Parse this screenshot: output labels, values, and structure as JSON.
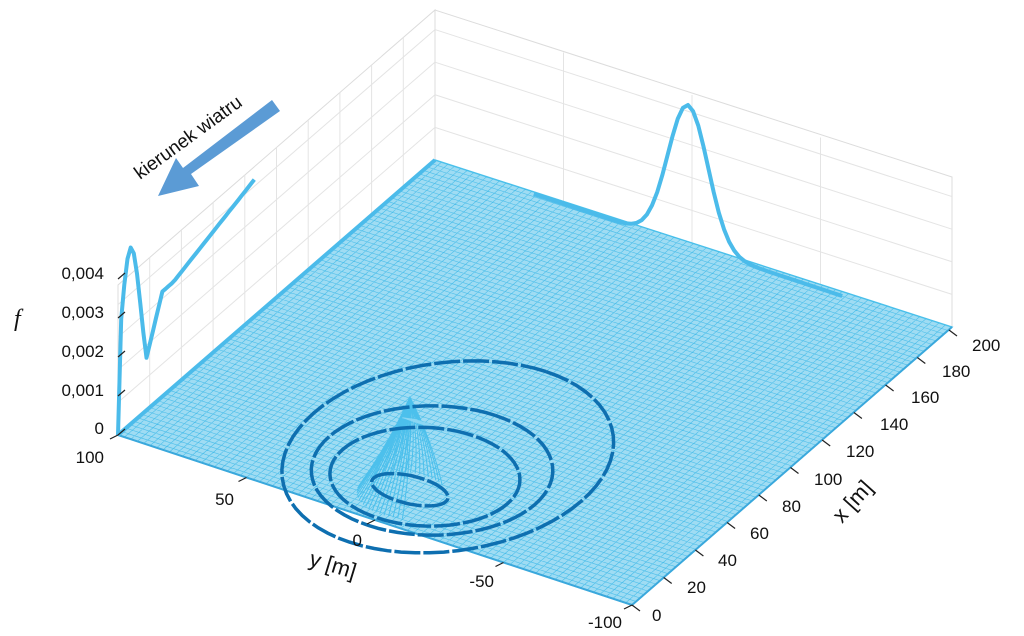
{
  "chart_data": {
    "type": "surface",
    "title": "",
    "annotation": "kierunek wiatru",
    "axes": {
      "x": {
        "label": "x [m]",
        "range": [
          0,
          200
        ],
        "ticks": [
          "0",
          "20",
          "40",
          "60",
          "80",
          "100",
          "120",
          "140",
          "160",
          "180",
          "200"
        ]
      },
      "y": {
        "label": "y [m]",
        "range": [
          -100,
          100
        ],
        "ticks": [
          "-100",
          "-50",
          "0",
          "50",
          "100"
        ]
      },
      "z": {
        "label": "f",
        "range": [
          0,
          0.004
        ],
        "ticks": [
          "0",
          "0,001",
          "0,002",
          "0,003",
          "0,004"
        ]
      }
    },
    "surface": {
      "peak_x": 22,
      "peak_y": 0,
      "peak_f": 0.0024,
      "grid": "on"
    },
    "projections": [
      {
        "name": "f(x) on back wall",
        "peak_x": 8,
        "peak_f": 0.0042,
        "tail_min_f": 0.0025
      },
      {
        "name": "f(y) on back wall",
        "peak_y": 0,
        "peak_f": 0.0045
      }
    ],
    "contours": [
      {
        "level": 0.0024,
        "center_x": 22,
        "center_y": 0
      },
      {
        "level": 0.001,
        "center_x": 48,
        "center_y": 0
      },
      {
        "level": 0.0005,
        "center_x": 58,
        "center_y": 0
      },
      {
        "level": 0.0002,
        "center_x": 80,
        "center_y": 0
      }
    ],
    "colors": {
      "surface": "#5bc8ee",
      "contours": "#0e6fb0",
      "projection": "#4bbbea",
      "arrow": "#5b9bd5"
    }
  }
}
